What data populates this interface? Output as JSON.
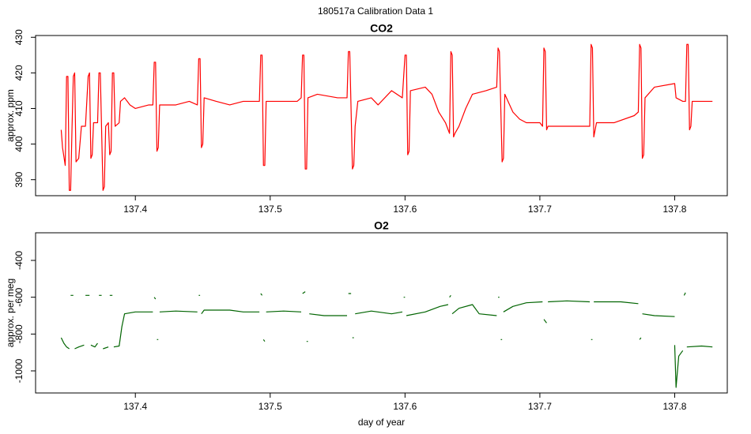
{
  "title": "180517a   Calibration Data 1",
  "chart_data": [
    {
      "type": "line",
      "title": "CO2",
      "ylabel": "approx. ppm",
      "color": "#ff0000",
      "xlim": [
        137.326,
        137.839
      ],
      "xticks": [
        137.4,
        137.5,
        137.6,
        137.7,
        137.8
      ],
      "ylim": [
        385.5,
        430.5
      ],
      "yticks": [
        390,
        400,
        410,
        420,
        430
      ],
      "x": [
        137.345,
        137.346,
        137.348,
        137.349,
        137.35,
        137.351,
        137.352,
        137.353,
        137.354,
        137.355,
        137.356,
        137.358,
        137.36,
        137.363,
        137.365,
        137.366,
        137.367,
        137.368,
        137.369,
        137.372,
        137.373,
        137.374,
        137.376,
        137.377,
        137.378,
        137.38,
        137.381,
        137.382,
        137.383,
        137.384,
        137.385,
        137.388,
        137.389,
        137.392,
        137.396,
        137.4,
        137.41,
        137.413,
        137.414,
        137.415,
        137.416,
        137.417,
        137.418,
        137.43,
        137.44,
        137.446,
        137.447,
        137.448,
        137.449,
        137.45,
        137.451,
        137.46,
        137.47,
        137.48,
        137.492,
        137.493,
        137.494,
        137.495,
        137.496,
        137.497,
        137.51,
        137.52,
        137.523,
        137.524,
        137.525,
        137.526,
        137.527,
        137.528,
        137.535,
        137.55,
        137.557,
        137.558,
        137.559,
        137.561,
        137.562,
        137.563,
        137.565,
        137.575,
        137.58,
        137.59,
        137.598,
        137.6,
        137.601,
        137.602,
        137.603,
        137.604,
        137.615,
        137.62,
        137.625,
        137.63,
        137.633,
        137.634,
        137.635,
        137.636,
        137.637,
        137.64,
        137.645,
        137.65,
        137.66,
        137.668,
        137.669,
        137.67,
        137.672,
        137.673,
        137.674,
        137.68,
        137.685,
        137.69,
        137.7,
        137.702,
        137.703,
        137.704,
        137.705,
        137.706,
        137.72,
        137.737,
        137.738,
        137.739,
        137.74,
        137.741,
        137.742,
        137.755,
        137.77,
        137.773,
        137.774,
        137.775,
        137.776,
        137.777,
        137.778,
        137.785,
        137.8,
        137.801,
        137.806,
        137.808,
        137.809,
        137.81,
        137.811,
        137.812,
        137.813,
        137.828
      ],
      "values": [
        404,
        399,
        394,
        419,
        419,
        387,
        387,
        404,
        419,
        420,
        395,
        396,
        405,
        405,
        419,
        420,
        396,
        397,
        406,
        406,
        420,
        420,
        387,
        388,
        405,
        406,
        397,
        398,
        420,
        420,
        405,
        406,
        412,
        413,
        411,
        410,
        411,
        411,
        423,
        423,
        398,
        399,
        411,
        411,
        412,
        411,
        424,
        424,
        399,
        400,
        413,
        412,
        411,
        412,
        412,
        425,
        425,
        394,
        394,
        412,
        412,
        412,
        413,
        425,
        425,
        393,
        393,
        413,
        414,
        413,
        413,
        426,
        426,
        393,
        394,
        405,
        412,
        413,
        411,
        415,
        413,
        425,
        425,
        397,
        398,
        415,
        416,
        414,
        409,
        406,
        403,
        426,
        425,
        402,
        403,
        405,
        410,
        414,
        415,
        416,
        427,
        426,
        395,
        396,
        414,
        409,
        407,
        406,
        406,
        405,
        427,
        426,
        404,
        405,
        405,
        405,
        428,
        427,
        402,
        404,
        406,
        406,
        408,
        409,
        428,
        427,
        396,
        397,
        413,
        416,
        417,
        413,
        412,
        412,
        428,
        428,
        404,
        405,
        412,
        412
      ]
    },
    {
      "type": "line",
      "title": "O2",
      "ylabel": "approx. per meg",
      "xlabel": "day of year",
      "color": "#006400",
      "xlim": [
        137.326,
        137.839
      ],
      "xticks": [
        137.4,
        137.5,
        137.6,
        137.7,
        137.8
      ],
      "ylim": [
        -1120,
        -250
      ],
      "yticks": [
        -1000,
        -800,
        -600,
        -400
      ],
      "x": [
        137.345,
        137.347,
        137.349,
        137.351,
        null,
        137.352,
        137.354,
        null,
        137.355,
        137.358,
        137.362,
        null,
        137.363,
        137.366,
        null,
        137.367,
        137.37,
        137.372,
        null,
        137.373,
        137.375,
        null,
        137.376,
        137.38,
        null,
        137.381,
        137.383,
        null,
        137.384,
        137.388,
        137.39,
        137.392,
        137.4,
        137.413,
        null,
        137.414,
        137.415,
        null,
        137.416,
        137.417,
        null,
        137.418,
        137.43,
        137.446,
        null,
        137.447,
        137.448,
        null,
        137.449,
        137.451,
        137.47,
        137.48,
        137.492,
        null,
        137.493,
        137.494,
        null,
        137.495,
        137.496,
        null,
        137.497,
        137.51,
        137.523,
        null,
        137.524,
        137.526,
        null,
        137.527,
        137.528,
        null,
        137.529,
        137.54,
        137.557,
        null,
        137.558,
        137.56,
        null,
        137.561,
        137.562,
        null,
        137.563,
        137.575,
        137.59,
        137.598,
        null,
        137.599,
        137.6,
        null,
        137.601,
        137.615,
        137.626,
        137.632,
        null,
        137.633,
        137.634,
        null,
        137.635,
        137.64,
        137.65,
        137.655,
        137.668,
        null,
        137.669,
        137.67,
        null,
        137.671,
        137.672,
        null,
        137.673,
        137.68,
        137.69,
        137.702,
        null,
        137.703,
        137.705,
        null,
        137.706,
        137.72,
        137.737,
        null,
        137.738,
        137.739,
        null,
        137.74,
        137.76,
        137.773,
        null,
        137.774,
        137.775,
        null,
        137.776,
        137.785,
        137.8,
        null,
        137.8,
        137.801,
        137.803,
        137.806,
        null,
        137.807,
        137.808,
        null,
        137.809,
        137.82,
        137.828
      ],
      "values": [
        -820,
        -850,
        -870,
        -880,
        null,
        -590,
        -590,
        null,
        -880,
        -870,
        -860,
        null,
        -590,
        -590,
        null,
        -860,
        -870,
        -850,
        null,
        -590,
        -590,
        null,
        -880,
        -870,
        null,
        -590,
        -590,
        null,
        -870,
        -865,
        -760,
        -690,
        -680,
        -680,
        null,
        -600,
        -610,
        null,
        -830,
        -830,
        null,
        -680,
        -675,
        -680,
        null,
        -590,
        -590,
        null,
        -690,
        -670,
        -670,
        -680,
        -680,
        null,
        -580,
        -590,
        null,
        -830,
        -840,
        null,
        -680,
        -675,
        -680,
        null,
        -580,
        -570,
        null,
        -840,
        -840,
        null,
        -690,
        -700,
        -700,
        null,
        -580,
        -580,
        null,
        -820,
        -820,
        null,
        -690,
        -675,
        -690,
        -680,
        null,
        -600,
        -600,
        null,
        -700,
        -680,
        -650,
        -640,
        null,
        -600,
        -590,
        null,
        -690,
        -660,
        -640,
        -690,
        -700,
        null,
        -600,
        -600,
        null,
        -830,
        -830,
        null,
        -680,
        -650,
        -630,
        -625,
        null,
        -720,
        -740,
        null,
        -625,
        -620,
        -625,
        null,
        -830,
        -830,
        null,
        -625,
        -625,
        -635,
        null,
        -830,
        -820,
        null,
        -690,
        -700,
        -705,
        null,
        -860,
        -1090,
        -920,
        -890,
        null,
        -590,
        -575,
        null,
        -870,
        -865,
        -870
      ]
    }
  ]
}
